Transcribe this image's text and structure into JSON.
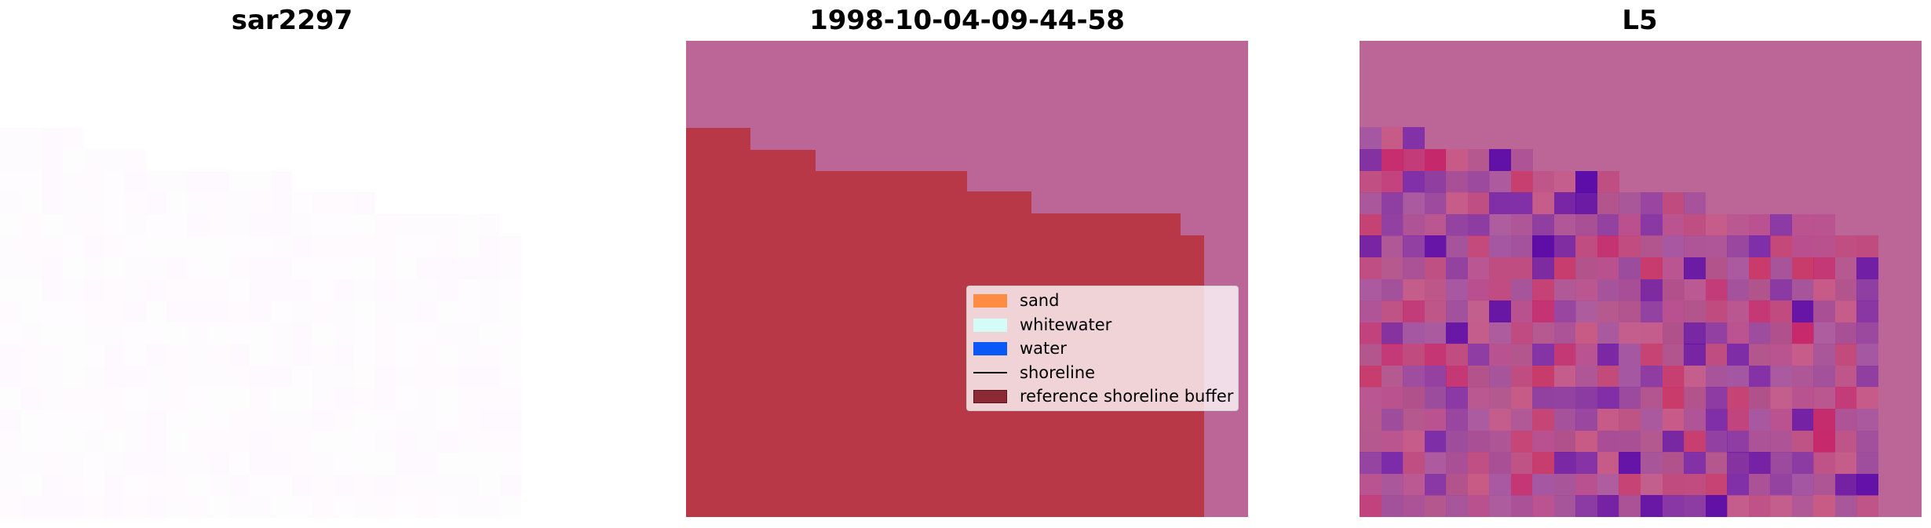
{
  "titles": {
    "left": "sar2297",
    "middle": "1998-10-04-09-44-58",
    "right": "L5"
  },
  "legend": {
    "items": [
      {
        "label": "sand",
        "type": "patch",
        "color": "#ff8c42"
      },
      {
        "label": "whitewater",
        "type": "patch",
        "color": "#d4fbf6"
      },
      {
        "label": "water",
        "type": "patch",
        "color": "#0c58f7"
      },
      {
        "label": "shoreline",
        "type": "line",
        "color": "#000000"
      },
      {
        "label": "reference shoreline buffer",
        "type": "patch",
        "color": "#8b2a35"
      }
    ]
  },
  "colors": {
    "sar_background": "#fefafe",
    "classification_background": "#bc6698",
    "reference_buffer": "#b83848",
    "l5_background": "#bc6698"
  }
}
